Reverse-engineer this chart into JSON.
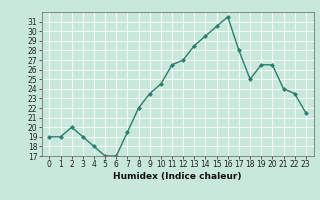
{
  "xlabel": "Humidex (Indice chaleur)",
  "ylabel": "",
  "x": [
    0,
    1,
    2,
    3,
    4,
    5,
    6,
    7,
    8,
    9,
    10,
    11,
    12,
    13,
    14,
    15,
    16,
    17,
    18,
    19,
    20,
    21,
    22,
    23
  ],
  "y": [
    19,
    19,
    20,
    19,
    18,
    17,
    17,
    19.5,
    22,
    23.5,
    24.5,
    26.5,
    27,
    28.5,
    29.5,
    30.5,
    31.5,
    28,
    25,
    26.5,
    26.5,
    24,
    23.5,
    21.5
  ],
  "ylim": [
    17,
    32
  ],
  "yticks": [
    17,
    18,
    19,
    20,
    21,
    22,
    23,
    24,
    25,
    26,
    27,
    28,
    29,
    30,
    31
  ],
  "xticks": [
    0,
    1,
    2,
    3,
    4,
    5,
    6,
    7,
    8,
    9,
    10,
    11,
    12,
    13,
    14,
    15,
    16,
    17,
    18,
    19,
    20,
    21,
    22,
    23
  ],
  "line_color": "#2e7d6e",
  "marker": "D",
  "marker_size": 2.0,
  "bg_color": "#c8e8dc",
  "grid_color": "#ffffff",
  "line_width": 1.0,
  "tick_fontsize": 5.5,
  "xlabel_fontsize": 6.5
}
